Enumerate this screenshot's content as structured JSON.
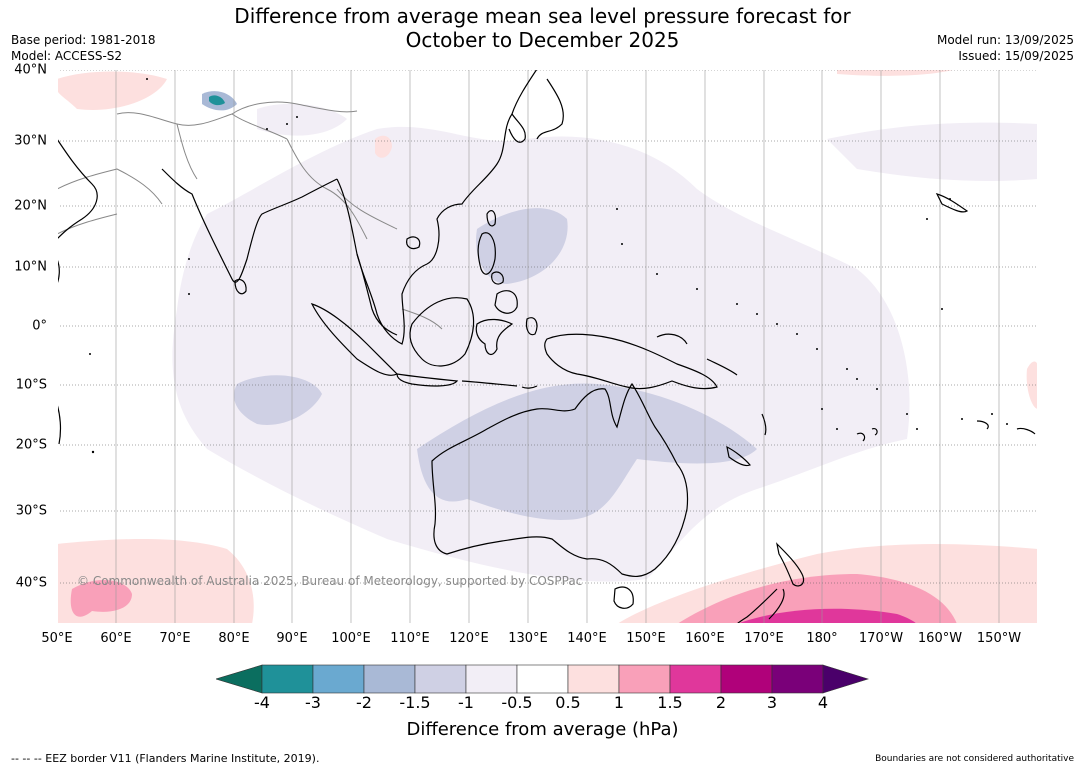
{
  "title": {
    "line1": "Difference from average mean sea level pressure forecast for",
    "line2": "October to December 2025"
  },
  "meta": {
    "base_period": "Base period: 1981-2018",
    "model": "Model: ACCESS-S2",
    "model_run": "Model run: 13/09/2025",
    "issued": "Issued: 15/09/2025"
  },
  "map": {
    "lat_labels": [
      "40°N",
      "30°N",
      "20°N",
      "10°N",
      "0°",
      "10°S",
      "20°S",
      "30°S",
      "40°S"
    ],
    "lon_labels": [
      "50°E",
      "60°E",
      "70°E",
      "80°E",
      "90°E",
      "100°E",
      "110°E",
      "120°E",
      "130°E",
      "140°E",
      "150°E",
      "160°E",
      "170°E",
      "180°",
      "170°W",
      "160°W",
      "150°W"
    ],
    "copyright": "© Commonwealth of Australia 2025, Bureau of Meteorology, supported by COSPPac",
    "colors": {
      "land_outline": "#000000",
      "country_border": "#888888",
      "grid": "#555555"
    }
  },
  "colorbar": {
    "ticks": [
      "-4",
      "-3",
      "-2",
      "-1.5",
      "-1",
      "-0.5",
      "0.5",
      "1",
      "1.5",
      "2",
      "3",
      "4"
    ],
    "under_color": "#0b6e5f",
    "over_color": "#4a006a",
    "colors": [
      "#1f9199",
      "#6aa9d0",
      "#a9b9d6",
      "#cfd0e4",
      "#f2eef6",
      "#ffffff",
      "#fde0df",
      "#f9a0b9",
      "#e0379b",
      "#b0017a",
      "#7a0079"
    ],
    "label": "Difference from average (hPa)"
  },
  "footer": {
    "eez_note": "--  --  -- EEZ border V11 (Flanders Marine Institute, 2019).",
    "boundaries_note": "Boundaries are not considered authoritative"
  }
}
